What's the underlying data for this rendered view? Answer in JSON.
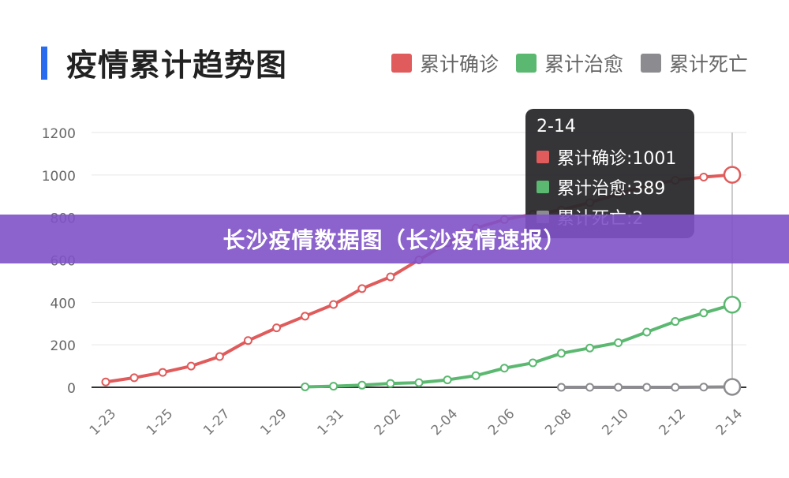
{
  "chart_data": {
    "type": "line",
    "title": "疫情累计趋势图",
    "categories": [
      "1-23",
      "1-24",
      "1-25",
      "1-26",
      "1-27",
      "1-28",
      "1-29",
      "1-30",
      "1-31",
      "2-01",
      "2-02",
      "2-03",
      "2-04",
      "2-05",
      "2-06",
      "2-07",
      "2-08",
      "2-09",
      "2-10",
      "2-11",
      "2-12",
      "2-13",
      "2-14"
    ],
    "x_tick_labels": [
      "1-23",
      "1-25",
      "1-27",
      "1-29",
      "1-31",
      "2-02",
      "2-04",
      "2-06",
      "2-08",
      "2-10",
      "2-12",
      "2-14"
    ],
    "y_ticks": [
      0,
      200,
      400,
      600,
      800,
      1000,
      1200
    ],
    "ylim": [
      0,
      1200
    ],
    "grid": true,
    "legend_position": "top-right",
    "series": [
      {
        "name": "累计确诊",
        "color": "#e05b5b",
        "values": [
          25,
          45,
          70,
          100,
          145,
          220,
          280,
          335,
          390,
          465,
          520,
          600,
          680,
          750,
          790,
          815,
          835,
          870,
          910,
          950,
          975,
          990,
          1001
        ]
      },
      {
        "name": "累计治愈",
        "color": "#5bb870",
        "values": [
          null,
          null,
          null,
          null,
          null,
          null,
          null,
          2,
          5,
          10,
          18,
          22,
          35,
          55,
          90,
          115,
          160,
          185,
          210,
          260,
          310,
          350,
          389
        ]
      },
      {
        "name": "累计死亡",
        "color": "#8c8c90",
        "values": [
          null,
          null,
          null,
          null,
          null,
          null,
          null,
          null,
          null,
          null,
          null,
          null,
          null,
          null,
          null,
          null,
          0,
          0,
          0,
          0,
          0,
          1,
          2
        ]
      }
    ],
    "tooltip": {
      "title": "2-14",
      "rows": [
        {
          "label": "累计确诊:1001",
          "color": "#e05b5b"
        },
        {
          "label": "累计治愈:389",
          "color": "#5bb870"
        },
        {
          "label": "累计死亡:2",
          "color": "#8c8c90"
        }
      ]
    }
  },
  "banner": {
    "text": "长沙疫情数据图（长沙疫情速报）"
  },
  "colors": {
    "title_accent": "#2a6cf0",
    "banner_bg": "#8052c8",
    "axis": "#333333",
    "grid": "#e6e6e6"
  }
}
